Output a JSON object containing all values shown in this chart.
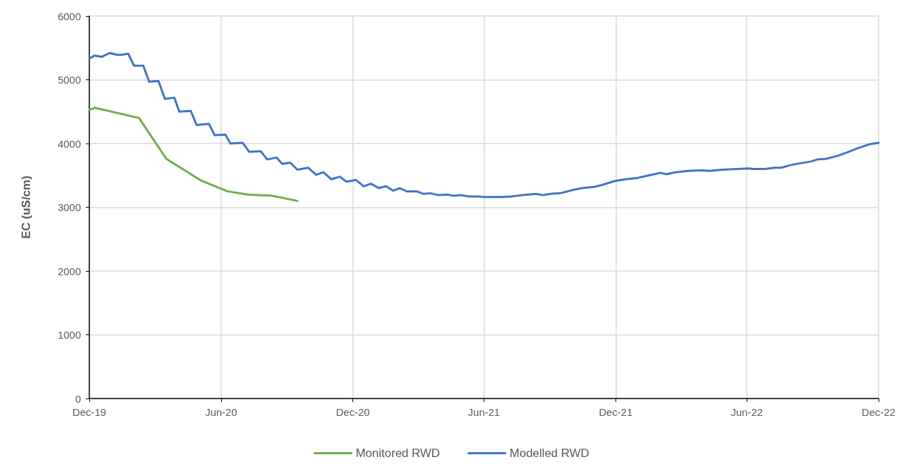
{
  "chart_data": {
    "type": "line",
    "ylabel": "EC (uS/cm)",
    "xlim": [
      "2019-12-01",
      "2022-12-01"
    ],
    "xticks": [
      {
        "value": "2019-12-01",
        "label": "Dec-19"
      },
      {
        "value": "2020-06-01",
        "label": "Jun-20"
      },
      {
        "value": "2020-12-01",
        "label": "Dec-20"
      },
      {
        "value": "2021-06-01",
        "label": "Jun-21"
      },
      {
        "value": "2021-12-01",
        "label": "Dec-21"
      },
      {
        "value": "2022-06-01",
        "label": "Jun-22"
      },
      {
        "value": "2022-12-01",
        "label": "Dec-22"
      }
    ],
    "ylim": [
      0,
      6000
    ],
    "yticks": [
      0,
      1000,
      2000,
      3000,
      4000,
      5000,
      6000
    ],
    "grid": true,
    "legend": "bottom",
    "marker": "none",
    "line_style": "solid",
    "series": [
      {
        "name": "Monitored RWD",
        "color": "#70ad47",
        "x": [
          "2019-12-01",
          "2019-12-09",
          "2020-02-08",
          "2020-03-17",
          "2020-05-04",
          "2020-06-10",
          "2020-07-08",
          "2020-08-11",
          "2020-09-15"
        ],
        "values": [
          4530,
          4560,
          4400,
          3760,
          3420,
          3250,
          3200,
          3180,
          3100
        ]
      },
      {
        "name": "Modelled RWD",
        "color": "#4472c4",
        "x": [
          "2019-12-01",
          "2019-12-08",
          "2019-12-18",
          "2019-12-29",
          "2020-01-09",
          "2020-01-15",
          "2020-01-24",
          "2020-02-01",
          "2020-02-14",
          "2020-02-22",
          "2020-03-06",
          "2020-03-15",
          "2020-03-28",
          "2020-04-04",
          "2020-04-20",
          "2020-04-28",
          "2020-05-15",
          "2020-05-23",
          "2020-06-07",
          "2020-06-14",
          "2020-07-01",
          "2020-07-10",
          "2020-07-26",
          "2020-08-04",
          "2020-08-17",
          "2020-08-25",
          "2020-09-05",
          "2020-09-15",
          "2020-09-30",
          "2020-10-11",
          "2020-10-21",
          "2020-11-01",
          "2020-11-13",
          "2020-11-22",
          "2020-12-05",
          "2020-12-16",
          "2020-12-26",
          "2021-01-06",
          "2021-01-16",
          "2021-01-26",
          "2021-02-04",
          "2021-02-14",
          "2021-02-28",
          "2021-03-09",
          "2021-03-19",
          "2021-03-30",
          "2021-04-10",
          "2021-04-20",
          "2021-05-01",
          "2021-05-11",
          "2021-05-24",
          "2021-06-01",
          "2021-06-27",
          "2021-07-09",
          "2021-07-24",
          "2021-08-12",
          "2021-08-22",
          "2021-09-01",
          "2021-09-15",
          "2021-10-02",
          "2021-10-15",
          "2021-11-01",
          "2021-11-12",
          "2021-11-29",
          "2021-12-15",
          "2021-12-31",
          "2022-01-16",
          "2022-02-01",
          "2022-02-09",
          "2022-02-22",
          "2022-03-12",
          "2022-03-31",
          "2022-04-10",
          "2022-04-29",
          "2022-06-04",
          "2022-06-10",
          "2022-06-27",
          "2022-07-09",
          "2022-07-19",
          "2022-07-31",
          "2022-08-14",
          "2022-08-30",
          "2022-09-07",
          "2022-09-19",
          "2022-10-06",
          "2022-10-18",
          "2022-11-03",
          "2022-11-19",
          "2022-12-01"
        ],
        "values": [
          5330,
          5380,
          5360,
          5420,
          5390,
          5390,
          5410,
          5220,
          5220,
          4970,
          4980,
          4700,
          4720,
          4500,
          4510,
          4290,
          4310,
          4130,
          4140,
          4000,
          4010,
          3870,
          3880,
          3750,
          3780,
          3680,
          3700,
          3590,
          3620,
          3510,
          3550,
          3440,
          3480,
          3400,
          3430,
          3330,
          3370,
          3300,
          3330,
          3260,
          3300,
          3250,
          3250,
          3210,
          3220,
          3190,
          3200,
          3180,
          3190,
          3170,
          3170,
          3160,
          3160,
          3170,
          3190,
          3210,
          3190,
          3210,
          3220,
          3270,
          3300,
          3320,
          3350,
          3410,
          3440,
          3460,
          3500,
          3540,
          3520,
          3550,
          3570,
          3580,
          3570,
          3590,
          3610,
          3600,
          3600,
          3620,
          3620,
          3660,
          3690,
          3720,
          3750,
          3760,
          3810,
          3860,
          3930,
          3990,
          4010
        ]
      }
    ]
  }
}
